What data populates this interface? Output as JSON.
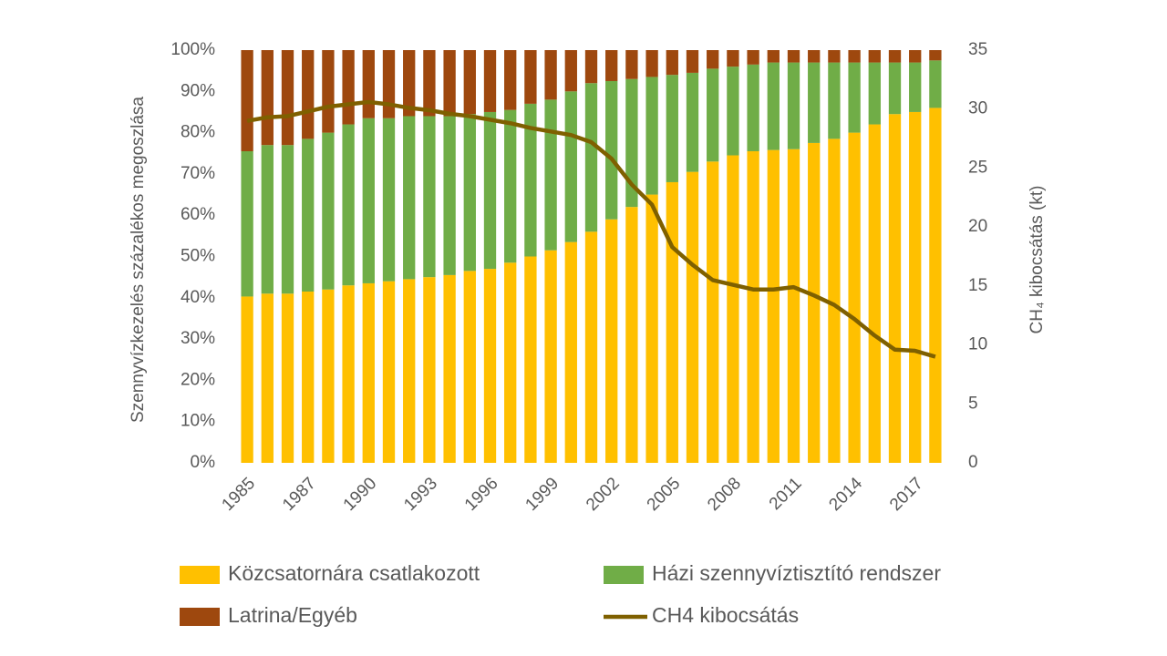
{
  "chart_data": {
    "type": "stacked_bar_line",
    "y_label": "Szennyvízkezelés  százalékos megoszlása",
    "y2_label": "CH₄ kibocsátás (kt)",
    "categories": [
      "1985",
      null,
      null,
      "1987",
      null,
      null,
      "1990",
      null,
      null,
      "1993",
      null,
      null,
      "1996",
      null,
      null,
      "1999",
      null,
      null,
      "2002",
      null,
      null,
      "2005",
      null,
      null,
      "2008",
      null,
      null,
      "2011",
      null,
      null,
      "2014",
      null,
      null,
      "2017",
      null
    ],
    "series": [
      {
        "name": "Közcsatornára csatlakozott",
        "color": "#FFC000",
        "kind": "bar",
        "values": [
          40.3,
          41,
          41,
          41.5,
          42,
          43,
          43.5,
          44,
          44.5,
          45,
          45.5,
          46.5,
          47,
          48.5,
          50,
          51.5,
          53.5,
          56,
          59,
          62,
          65,
          68,
          70.5,
          73,
          74.5,
          75.5,
          75.8,
          76,
          77.5,
          78.5,
          80,
          82,
          84.5,
          85,
          86
        ]
      },
      {
        "name": "Házi szennyvíztisztító rendszer",
        "color": "#70AD47",
        "kind": "bar",
        "values": [
          35.2,
          36,
          36,
          37,
          38,
          39,
          40,
          39.5,
          39.5,
          39,
          38.5,
          38,
          38,
          37,
          37,
          36.5,
          36.5,
          36,
          33.5,
          31,
          28.5,
          26,
          24,
          22.5,
          21.5,
          21,
          21.2,
          21,
          19.5,
          18.5,
          17,
          15,
          12.5,
          12,
          11.5
        ]
      },
      {
        "name": "Latrina/Egyéb",
        "color": "#9E480E",
        "kind": "bar",
        "values": [
          24.5,
          23,
          23,
          21.5,
          20,
          18,
          16.5,
          16.5,
          16,
          16,
          16,
          15.5,
          15,
          14.5,
          13,
          12,
          10,
          8,
          7.5,
          7,
          6.5,
          6,
          5.5,
          4.5,
          4,
          3.5,
          3,
          3,
          3,
          3,
          3,
          3,
          3,
          3,
          2.5
        ]
      },
      {
        "name": "CH4 kibocsátás",
        "color": "#7F6000",
        "kind": "line",
        "axis": "y2",
        "values": [
          29,
          29.3,
          29.4,
          29.8,
          30.2,
          30.4,
          30.6,
          30.4,
          30.1,
          29.9,
          29.6,
          29.4,
          29.1,
          28.8,
          28.4,
          28.1,
          27.8,
          27.2,
          25.8,
          23.6,
          21.9,
          18.3,
          16.8,
          15.5,
          15.1,
          14.7,
          14.7,
          14.9,
          14.2,
          13.4,
          12.2,
          10.8,
          9.6,
          9.5,
          9
        ]
      }
    ],
    "ylim": [
      0,
      100
    ],
    "yticks": [
      {
        "value": 0,
        "label": "0%"
      },
      {
        "value": 10,
        "label": "10%"
      },
      {
        "value": 20,
        "label": "20%"
      },
      {
        "value": 30,
        "label": "30%"
      },
      {
        "value": 40,
        "label": "40%"
      },
      {
        "value": 50,
        "label": "50%"
      },
      {
        "value": 60,
        "label": "60%"
      },
      {
        "value": 70,
        "label": "70%"
      },
      {
        "value": 80,
        "label": "80%"
      },
      {
        "value": 90,
        "label": "90%"
      },
      {
        "value": 100,
        "label": "100%"
      }
    ],
    "y2lim": [
      0,
      35
    ],
    "y2ticks": [
      0,
      5,
      10,
      15,
      20,
      25,
      30,
      35
    ],
    "grid": false,
    "legend": "bottom"
  }
}
